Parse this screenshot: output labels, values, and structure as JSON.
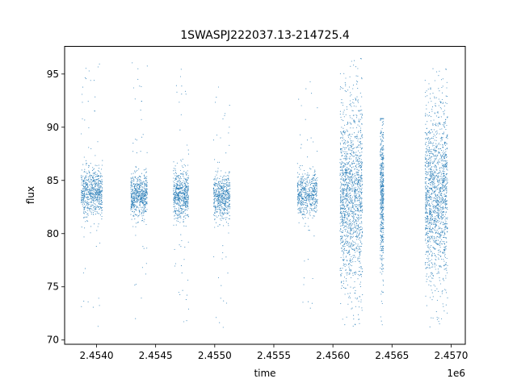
{
  "chart_data": {
    "type": "scatter",
    "title": "1SWASPJ222037.13-214725.4",
    "xlabel": "time",
    "ylabel": "flux",
    "x_offset_label": "1e6",
    "xlim": [
      2453730,
      2457120
    ],
    "ylim": [
      69.6,
      97.6
    ],
    "x_ticks": [
      2454000,
      2454500,
      2455000,
      2455500,
      2456000,
      2456500,
      2457000
    ],
    "x_tick_labels": [
      "2.4540",
      "2.4545",
      "2.4550",
      "2.4555",
      "2.4560",
      "2.4565",
      "2.4570"
    ],
    "y_ticks": [
      70,
      75,
      80,
      85,
      90,
      95
    ],
    "y_tick_labels": [
      "70",
      "75",
      "80",
      "85",
      "90",
      "95"
    ],
    "grid": false,
    "marker_color": "#1f77b4",
    "series": [
      {
        "seasons": [
          {
            "x_start": 2453870,
            "x_end": 2454050,
            "mean": 83.8,
            "spread": 1.1,
            "tail_min": 71.0,
            "tail_max": 96.3,
            "n": 700
          },
          {
            "x_start": 2454290,
            "x_end": 2454430,
            "mean": 83.6,
            "spread": 1.0,
            "tail_min": 71.5,
            "tail_max": 96.1,
            "n": 600
          },
          {
            "x_start": 2454650,
            "x_end": 2454780,
            "mean": 83.6,
            "spread": 1.1,
            "tail_min": 71.3,
            "tail_max": 95.5,
            "n": 600
          },
          {
            "x_start": 2454990,
            "x_end": 2455130,
            "mean": 83.4,
            "spread": 1.0,
            "tail_min": 70.9,
            "tail_max": 95.3,
            "n": 550
          },
          {
            "x_start": 2455700,
            "x_end": 2455870,
            "mean": 83.8,
            "spread": 1.0,
            "tail_min": 72.3,
            "tail_max": 96.3,
            "n": 550
          },
          {
            "x_start": 2456060,
            "x_end": 2456250,
            "mean": 83.6,
            "spread": 4.0,
            "tail_min": 71.0,
            "tail_max": 96.5,
            "n": 1500
          },
          {
            "x_start": 2456400,
            "x_end": 2456430,
            "mean": 83.5,
            "spread": 3.4,
            "tail_min": 71.2,
            "tail_max": 90.8,
            "n": 500
          },
          {
            "x_start": 2456780,
            "x_end": 2456970,
            "mean": 83.8,
            "spread": 3.8,
            "tail_min": 70.8,
            "tail_max": 95.5,
            "n": 1500
          }
        ]
      }
    ]
  }
}
